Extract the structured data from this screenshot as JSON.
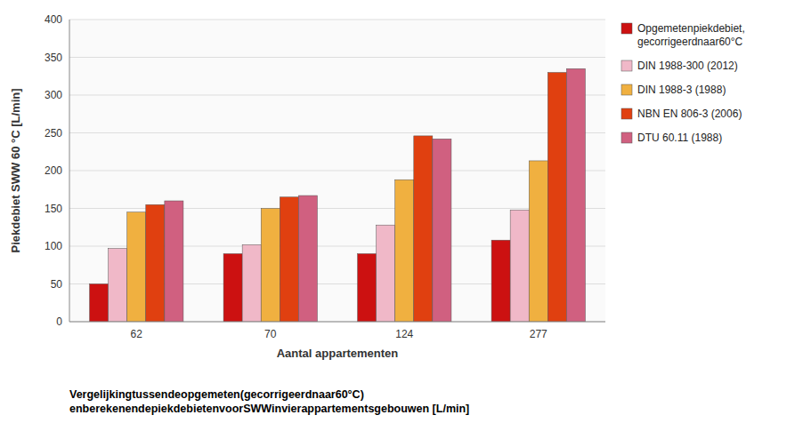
{
  "chart_data": {
    "type": "bar",
    "categories": [
      "62",
      "70",
      "124",
      "277"
    ],
    "series": [
      {
        "name": "Opgemetenpiekdebiet,\ngecorrigeerdnaar60°C",
        "color": "#cc1111",
        "values": [
          50,
          90,
          90,
          108
        ]
      },
      {
        "name": "DIN 1988-300 (2012)",
        "color": "#f0b8c8",
        "values": [
          97,
          102,
          128,
          148
        ]
      },
      {
        "name": "DIN 1988-3 (1988)",
        "color": "#f0b040",
        "values": [
          145,
          150,
          188,
          213
        ]
      },
      {
        "name": "NBN EN 806-3 (2006)",
        "color": "#e04010",
        "values": [
          155,
          165,
          246,
          330
        ]
      },
      {
        "name": "DTU 60.11 (1988)",
        "color": "#d06080",
        "values": [
          160,
          167,
          242,
          335
        ]
      }
    ],
    "xlabel": "Aantal appartementen",
    "ylabel": "Piekdebiet SWW 60 °C [L/min]",
    "ylim": [
      0,
      400
    ],
    "yticks": [
      0,
      50,
      100,
      150,
      200,
      250,
      300,
      350,
      400
    ],
    "grid": true,
    "legend": "right",
    "annotations": [
      "Vergelijkingtussendeopgemeten(gecorrigeerdnaar60°C)",
      "enberekenendepiekdebietenvoorSWWinvierappartementsgebouwen [L/min]"
    ]
  }
}
